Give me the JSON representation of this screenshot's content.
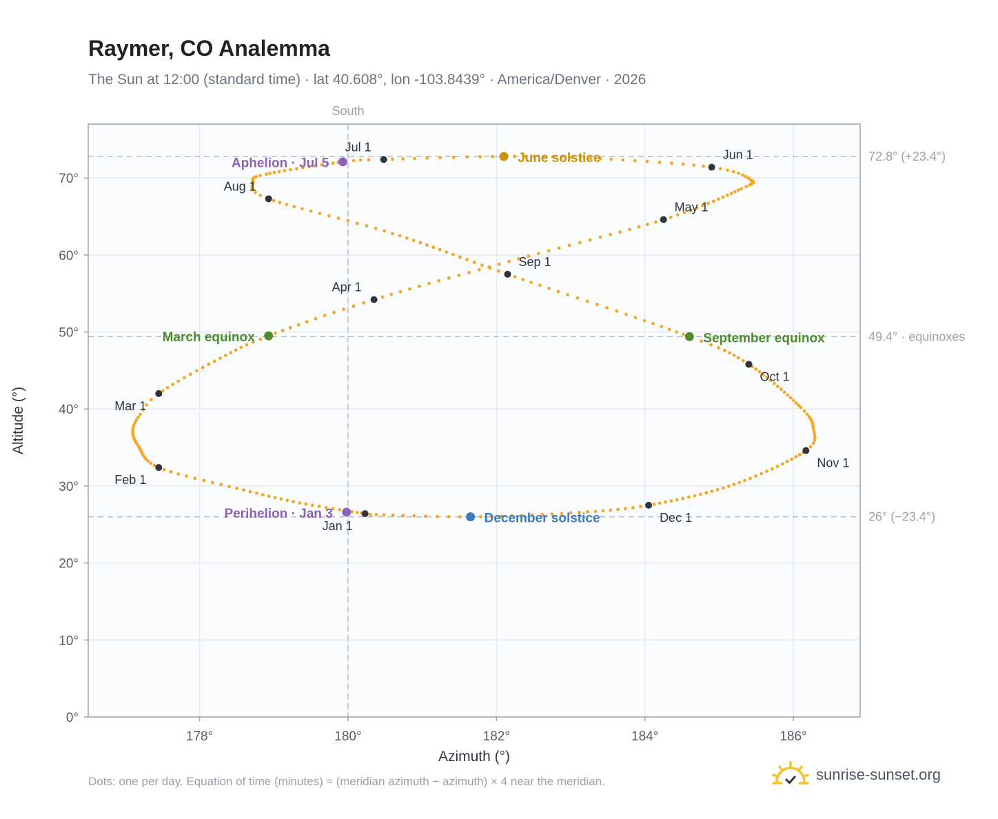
{
  "header": {
    "title": "Raymer, CO Analemma",
    "subtitle": "The Sun at 12:00 (standard time) · lat 40.608°, lon -103.8439° · America/Denver · 2026"
  },
  "footer": {
    "note": "Dots: one per day. Equation of time (minutes) ≈ (meridian azimuth − azimuth) × 4 near the meridian.",
    "brand": "sunrise-sunset.org"
  },
  "colors": {
    "path": "#f5a623",
    "month_marker": "#2f343b",
    "june_solstice": "#c8930d",
    "december_solstice": "#3a7bbf",
    "equinox": "#4e8d2e",
    "apsis": "#8c63b8",
    "grid": "#e6e9ee",
    "plot_bg": "#fbfcfe",
    "axis": "#9aa3b0"
  },
  "chart_data": {
    "type": "scatter",
    "xlabel": "Azimuth (°)",
    "ylabel": "Altitude (°)",
    "xlim": [
      176.5,
      186.9
    ],
    "ylim": [
      0,
      77
    ],
    "xticks": [
      178,
      180,
      182,
      184,
      186
    ],
    "yticks": [
      0,
      10,
      20,
      30,
      40,
      50,
      60,
      70
    ],
    "x_tick_labels": [
      "178°",
      "180°",
      "182°",
      "184°",
      "186°"
    ],
    "y_tick_labels": [
      "0°",
      "10°",
      "20°",
      "30°",
      "40°",
      "50°",
      "60°",
      "70°"
    ],
    "grid": true,
    "meridian": {
      "azimuth": 180,
      "label": "South"
    },
    "reference_lines": [
      {
        "altitude": 72.8,
        "label": "72.8° (+23.4°)"
      },
      {
        "altitude": 49.4,
        "label": "49.4° · equinoxes"
      },
      {
        "altitude": 26.0,
        "label": "26° (−23.4°)"
      }
    ],
    "path_anchors": [
      {
        "day": 1,
        "az": 180.23,
        "alt": 26.4
      },
      {
        "day": 12,
        "az": 179.35,
        "alt": 27.8
      },
      {
        "day": 22,
        "az": 178.5,
        "alt": 29.7
      },
      {
        "day": 32,
        "az": 177.45,
        "alt": 32.4
      },
      {
        "day": 42,
        "az": 177.18,
        "alt": 35.1
      },
      {
        "day": 50,
        "az": 177.1,
        "alt": 37.2
      },
      {
        "day": 56,
        "az": 177.2,
        "alt": 39.3
      },
      {
        "day": 60,
        "az": 177.45,
        "alt": 42.0
      },
      {
        "day": 70,
        "az": 178.2,
        "alt": 46.2
      },
      {
        "day": 79,
        "az": 178.93,
        "alt": 49.5
      },
      {
        "day": 91,
        "az": 180.35,
        "alt": 54.2
      },
      {
        "day": 106,
        "az": 182.3,
        "alt": 59.5
      },
      {
        "day": 121,
        "az": 184.25,
        "alt": 64.6
      },
      {
        "day": 136,
        "az": 185.3,
        "alt": 68.6
      },
      {
        "day": 144,
        "az": 185.42,
        "alt": 69.8
      },
      {
        "day": 152,
        "az": 184.9,
        "alt": 71.4
      },
      {
        "day": 162,
        "az": 183.4,
        "alt": 72.5
      },
      {
        "day": 172,
        "az": 182.1,
        "alt": 72.8
      },
      {
        "day": 182,
        "az": 180.48,
        "alt": 72.4
      },
      {
        "day": 186,
        "az": 179.93,
        "alt": 72.1
      },
      {
        "day": 200,
        "az": 178.9,
        "alt": 70.5
      },
      {
        "day": 206,
        "az": 178.72,
        "alt": 69.5
      },
      {
        "day": 213,
        "az": 178.93,
        "alt": 67.3
      },
      {
        "day": 228,
        "az": 180.6,
        "alt": 62.8
      },
      {
        "day": 244,
        "az": 182.15,
        "alt": 57.5
      },
      {
        "day": 265,
        "az": 184.6,
        "alt": 49.4
      },
      {
        "day": 274,
        "az": 185.4,
        "alt": 45.8
      },
      {
        "day": 290,
        "az": 186.1,
        "alt": 40.2
      },
      {
        "day": 298,
        "az": 186.27,
        "alt": 37.5
      },
      {
        "day": 305,
        "az": 186.17,
        "alt": 34.6
      },
      {
        "day": 320,
        "az": 185.2,
        "alt": 30.2
      },
      {
        "day": 335,
        "az": 184.05,
        "alt": 27.5
      },
      {
        "day": 345,
        "az": 183.0,
        "alt": 26.5
      },
      {
        "day": 355,
        "az": 181.65,
        "alt": 26.0
      },
      {
        "day": 365,
        "az": 180.3,
        "alt": 26.3
      }
    ],
    "month_markers": [
      {
        "label": "Jan 1",
        "az": 180.23,
        "alt": 26.4,
        "anchor": "end",
        "dx": -18,
        "dy": 24
      },
      {
        "label": "Feb 1",
        "az": 177.45,
        "alt": 32.4,
        "anchor": "end",
        "dx": -18,
        "dy": 24
      },
      {
        "label": "Mar 1",
        "az": 177.45,
        "alt": 42.0,
        "anchor": "end",
        "dx": -18,
        "dy": 24
      },
      {
        "label": "Apr 1",
        "az": 180.35,
        "alt": 54.2,
        "anchor": "end",
        "dx": -18,
        "dy": -12
      },
      {
        "label": "May 1",
        "az": 184.25,
        "alt": 64.6,
        "anchor": "start",
        "dx": 16,
        "dy": -12
      },
      {
        "label": "Jun 1",
        "az": 184.9,
        "alt": 71.4,
        "anchor": "start",
        "dx": 16,
        "dy": -12
      },
      {
        "label": "Jul 1",
        "az": 180.48,
        "alt": 72.4,
        "anchor": "end",
        "dx": -18,
        "dy": -12
      },
      {
        "label": "Aug 1",
        "az": 178.93,
        "alt": 67.3,
        "anchor": "end",
        "dx": -18,
        "dy": -12
      },
      {
        "label": "Sep 1",
        "az": 182.15,
        "alt": 57.5,
        "anchor": "start",
        "dx": 16,
        "dy": -12
      },
      {
        "label": "Oct 1",
        "az": 185.4,
        "alt": 45.8,
        "anchor": "start",
        "dx": 16,
        "dy": 24
      },
      {
        "label": "Nov 1",
        "az": 186.17,
        "alt": 34.6,
        "anchor": "start",
        "dx": 16,
        "dy": 24
      },
      {
        "label": "Dec 1",
        "az": 184.05,
        "alt": 27.5,
        "anchor": "start",
        "dx": 16,
        "dy": 24
      }
    ],
    "events": [
      {
        "label": "June solstice",
        "az": 182.1,
        "alt": 72.8,
        "color": "#c8930d",
        "anchor": "start",
        "dx": 20,
        "dy": 8
      },
      {
        "label": "December solstice",
        "az": 181.65,
        "alt": 26.0,
        "color": "#3a7bbf",
        "anchor": "start",
        "dx": 20,
        "dy": 8
      },
      {
        "label": "March equinox",
        "az": 178.93,
        "alt": 49.5,
        "color": "#4e8d2e",
        "anchor": "end",
        "dx": -20,
        "dy": 8
      },
      {
        "label": "September equinox",
        "az": 184.6,
        "alt": 49.4,
        "color": "#4e8d2e",
        "anchor": "start",
        "dx": 20,
        "dy": 8
      },
      {
        "label": "Aphelion · Jul 5",
        "az": 179.93,
        "alt": 72.1,
        "color": "#8c63b8",
        "anchor": "end",
        "dx": -20,
        "dy": 8
      },
      {
        "label": "Perihelion · Jan 3",
        "az": 179.98,
        "alt": 26.6,
        "color": "#8c63b8",
        "anchor": "end",
        "dx": -20,
        "dy": 8
      }
    ]
  }
}
